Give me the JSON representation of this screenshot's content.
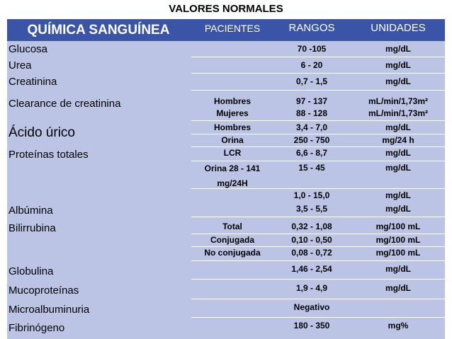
{
  "title": "VALORES NORMALES",
  "header": [
    "QUÍMICA SANGUÍNEA",
    "PACIENTES",
    "RANGOS",
    "UNIDADES"
  ],
  "rows": [
    {
      "name": "Glucosa",
      "lines": [
        {
          "range": "70 -105",
          "unit": "mg/dL"
        }
      ]
    },
    {
      "name": "Urea",
      "lines": [
        {
          "range": "6 - 20",
          "unit": "mg/dL"
        }
      ]
    },
    {
      "name": "Creatinina",
      "lines": [
        {
          "range": "0,7 - 1,5",
          "unit": "mg/dL"
        }
      ]
    },
    {
      "name": "Clearance de creatinina",
      "lines": [
        {
          "patient": "Hombres",
          "range": "97 - 137",
          "unit": "mL/min/1,73m²"
        },
        {
          "patient": "Mujeres",
          "range": "88 - 128",
          "unit": "mL/min/1,73m²"
        }
      ]
    },
    {
      "name": "Ácido úrico",
      "lines": [
        {
          "patient": "Hombres",
          "range": "3,4 - 7,0",
          "unit": "mg/dL"
        },
        {
          "patient": "Orina",
          "range": "250 - 750",
          "unit": "mg/24 h"
        }
      ]
    },
    {
      "name": "Proteínas totales",
      "lines": [
        {
          "patient": "LCR",
          "range": "6,6 - 8,7",
          "unit": "mg/dL"
        },
        {
          "patient": "Orina 28 - 141 mg/24H",
          "range": "15 - 45",
          "unit": "mg/dL"
        },
        {
          "range": "1,0 - 15,0",
          "unit": "mg/dL"
        }
      ]
    },
    {
      "name": "Albúmina",
      "lines": [
        {
          "range": "3,5 - 5,5",
          "unit": "mg/dL"
        }
      ]
    },
    {
      "name": "Bilirrubina",
      "lines": [
        {
          "patient": "Total",
          "range": "0,32 - 1,08",
          "unit": "mg/100 mL"
        },
        {
          "patient": "Conjugada",
          "range": "0,10 - 0,50",
          "unit": "mg/100 mL"
        },
        {
          "patient": "No conjugada",
          "range": "0,08 - 0,72",
          "unit": "mg/100 mL"
        }
      ]
    },
    {
      "name": "Globulina",
      "lines": [
        {
          "range": "1,46 - 2,54",
          "unit": "mg/dL"
        }
      ]
    },
    {
      "name": "Mucoproteínas",
      "lines": [
        {
          "range": "1,9 - 4,9",
          "unit": "mg/dL"
        }
      ]
    },
    {
      "name": "Microalbuminuria",
      "lines": [
        {
          "range": "Negativo"
        }
      ]
    },
    {
      "name": "Fibrinógeno",
      "lines": [
        {
          "range": "180 - 350",
          "unit": "mg%"
        }
      ]
    }
  ]
}
